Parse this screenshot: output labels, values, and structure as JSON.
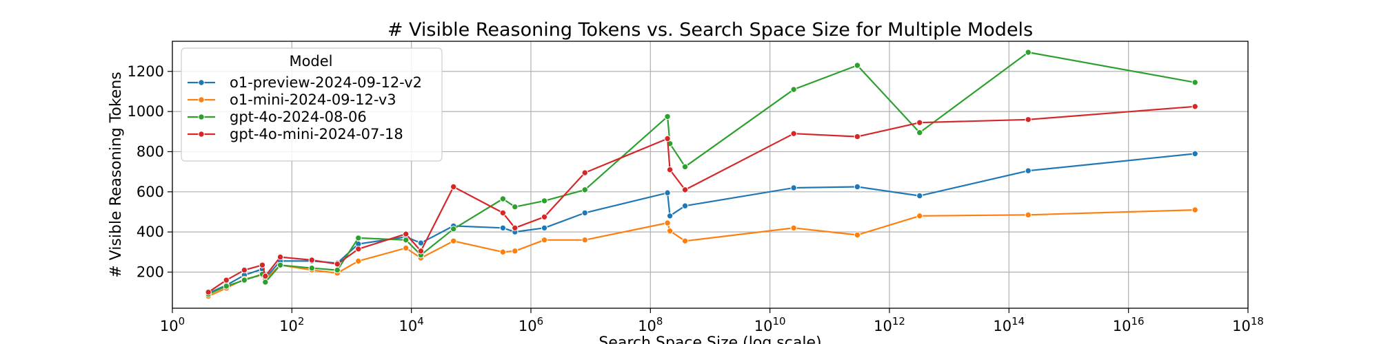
{
  "chart_data": {
    "type": "line",
    "title": "# Visible Reasoning Tokens vs. Search Space Size for Multiple Models",
    "xlabel": "Search Space Size (log scale)",
    "ylabel": "# Visible Reasoning Tokens",
    "xscale": "log",
    "xlim": [
      1,
      1e+18
    ],
    "ylim": [
      20,
      1350
    ],
    "grid": true,
    "xticks": [
      {
        "value": 1,
        "base": "10",
        "exp": "0"
      },
      {
        "value": 100,
        "base": "10",
        "exp": "2"
      },
      {
        "value": 10000,
        "base": "10",
        "exp": "4"
      },
      {
        "value": 1000000,
        "base": "10",
        "exp": "6"
      },
      {
        "value": 100000000,
        "base": "10",
        "exp": "8"
      },
      {
        "value": 10000000000,
        "base": "10",
        "exp": "10"
      },
      {
        "value": 1000000000000,
        "base": "10",
        "exp": "12"
      },
      {
        "value": 100000000000000,
        "base": "10",
        "exp": "14"
      },
      {
        "value": 10000000000000000,
        "base": "10",
        "exp": "16"
      },
      {
        "value": 1000000000000000000,
        "base": "10",
        "exp": "18"
      }
    ],
    "yticks": [
      "200",
      "400",
      "600",
      "800",
      "1000",
      "1200"
    ],
    "legend": {
      "title": "Model",
      "placement": "top-left"
    },
    "x": [
      4,
      8,
      16,
      32,
      36,
      64,
      216,
      576,
      1296,
      8100,
      14400,
      50625,
      340000,
      540000,
      1680000,
      8000000,
      193000000,
      212000000,
      380000000,
      25000000000.0,
      290000000000.0,
      3200000000000.0,
      210000000000000.0,
      1.3e+17
    ],
    "series": [
      {
        "name": "o1-preview-2024-09-12-v2",
        "color": "#1f77b4",
        "values": [
          95,
          135,
          185,
          215,
          170,
          255,
          255,
          245,
          340,
          375,
          345,
          430,
          420,
          400,
          420,
          495,
          595,
          480,
          530,
          620,
          625,
          580,
          705,
          790
        ]
      },
      {
        "name": "o1-mini-2024-09-12-v3",
        "color": "#ff7f0e",
        "values": [
          80,
          120,
          165,
          185,
          165,
          235,
          210,
          195,
          255,
          320,
          270,
          355,
          300,
          305,
          360,
          360,
          445,
          405,
          355,
          420,
          385,
          480,
          485,
          510
        ]
      },
      {
        "name": "gpt-4o-2024-08-06",
        "color": "#2ca02c",
        "values": [
          90,
          130,
          160,
          190,
          150,
          235,
          220,
          210,
          370,
          360,
          285,
          415,
          565,
          525,
          555,
          610,
          975,
          840,
          725,
          1110,
          1230,
          895,
          1295,
          1145
        ]
      },
      {
        "name": "gpt-4o-mini-2024-07-18",
        "color": "#d62728",
        "values": [
          100,
          160,
          210,
          235,
          180,
          275,
          260,
          240,
          315,
          390,
          305,
          625,
          495,
          420,
          475,
          695,
          865,
          710,
          610,
          890,
          875,
          945,
          960,
          1025
        ]
      }
    ]
  }
}
